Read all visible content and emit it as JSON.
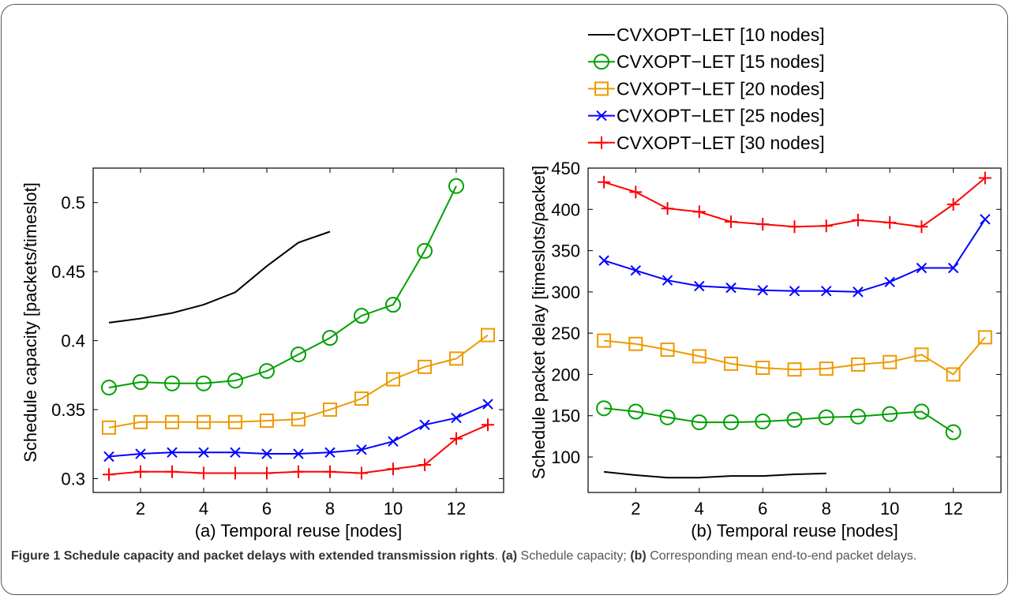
{
  "caption": {
    "label": "Figure 1",
    "title": "Schedule capacity and packet delays with extended transmission rights",
    "part_a_tag": "(a)",
    "part_a_text": "Schedule capacity;",
    "part_b_tag": "(b)",
    "part_b_text": "Corresponding mean end-to-end packet delays."
  },
  "legend": {
    "placement": "top-right (above panel b)",
    "entries": [
      {
        "label": "CVXOPT−LET [10 nodes]",
        "color": "#000000",
        "marker": "none"
      },
      {
        "label": "CVXOPT−LET [15 nodes]",
        "color": "#00a000",
        "marker": "circle"
      },
      {
        "label": "CVXOPT−LET [20 nodes]",
        "color": "#ee9a00",
        "marker": "square"
      },
      {
        "label": "CVXOPT−LET [25 nodes]",
        "color": "#0000ff",
        "marker": "x"
      },
      {
        "label": "CVXOPT−LET [30 nodes]",
        "color": "#ff0000",
        "marker": "plus"
      }
    ]
  },
  "chart_data": [
    {
      "type": "line",
      "title": "",
      "xlabel": "(a)  Temporal reuse [nodes]",
      "ylabel": "Schedule capacity [packets/timeslot]",
      "xlim": [
        0.5,
        13.5
      ],
      "ylim": [
        0.29,
        0.525
      ],
      "xticks": [
        2,
        4,
        6,
        8,
        10,
        12
      ],
      "yticks": [
        0.3,
        0.35,
        0.4,
        0.45,
        0.5
      ],
      "ytick_labels": [
        "0.3",
        "0.35",
        "0.4",
        "0.45",
        "0.5"
      ],
      "grid": false,
      "series": [
        {
          "name": "CVXOPT−LET [10 nodes]",
          "color": "#000000",
          "marker": "none",
          "x": [
            1,
            2,
            3,
            4,
            5,
            6,
            7,
            8
          ],
          "y": [
            0.413,
            0.416,
            0.42,
            0.426,
            0.435,
            0.454,
            0.471,
            0.479
          ]
        },
        {
          "name": "CVXOPT−LET [15 nodes]",
          "color": "#00a000",
          "marker": "circle",
          "x": [
            1,
            2,
            3,
            4,
            5,
            6,
            7,
            8,
            9,
            10,
            11,
            12
          ],
          "y": [
            0.366,
            0.37,
            0.369,
            0.369,
            0.371,
            0.378,
            0.39,
            0.402,
            0.418,
            0.426,
            0.465,
            0.512
          ]
        },
        {
          "name": "CVXOPT−LET [20 nodes]",
          "color": "#ee9a00",
          "marker": "square",
          "x": [
            1,
            2,
            3,
            4,
            5,
            6,
            7,
            8,
            9,
            10,
            11,
            12,
            13
          ],
          "y": [
            0.337,
            0.341,
            0.341,
            0.341,
            0.341,
            0.342,
            0.343,
            0.35,
            0.358,
            0.372,
            0.381,
            0.387,
            0.404
          ]
        },
        {
          "name": "CVXOPT−LET [25 nodes]",
          "color": "#0000ff",
          "marker": "x",
          "x": [
            1,
            2,
            3,
            4,
            5,
            6,
            7,
            8,
            9,
            10,
            11,
            12,
            13
          ],
          "y": [
            0.316,
            0.318,
            0.319,
            0.319,
            0.319,
            0.318,
            0.318,
            0.319,
            0.321,
            0.327,
            0.339,
            0.344,
            0.354
          ]
        },
        {
          "name": "CVXOPT−LET [30 nodes]",
          "color": "#ff0000",
          "marker": "plus",
          "x": [
            1,
            2,
            3,
            4,
            5,
            6,
            7,
            8,
            9,
            10,
            11,
            12,
            13
          ],
          "y": [
            0.303,
            0.305,
            0.305,
            0.304,
            0.304,
            0.304,
            0.305,
            0.305,
            0.304,
            0.307,
            0.31,
            0.329,
            0.339
          ]
        }
      ]
    },
    {
      "type": "line",
      "title": "",
      "xlabel": "(b)  Temporal reuse [nodes]",
      "ylabel": "Schedule packet delay [timeslots/packet]",
      "xlim": [
        0.5,
        13.5
      ],
      "ylim": [
        57,
        450
      ],
      "xticks": [
        2,
        4,
        6,
        8,
        10,
        12
      ],
      "yticks": [
        100,
        150,
        200,
        250,
        300,
        350,
        400,
        450
      ],
      "ytick_labels": [
        "100",
        "150",
        "200",
        "250",
        "300",
        "350",
        "400",
        "450"
      ],
      "grid": false,
      "series": [
        {
          "name": "CVXOPT−LET [10 nodes]",
          "color": "#000000",
          "marker": "none",
          "x": [
            1,
            2,
            3,
            4,
            5,
            6,
            7,
            8
          ],
          "y": [
            82,
            78,
            75,
            75,
            77,
            77,
            79,
            80
          ]
        },
        {
          "name": "CVXOPT−LET [15 nodes]",
          "color": "#00a000",
          "marker": "circle",
          "x": [
            1,
            2,
            3,
            4,
            5,
            6,
            7,
            8,
            9,
            10,
            11,
            12
          ],
          "y": [
            159,
            155,
            148,
            142,
            142,
            143,
            145,
            148,
            149,
            152,
            155,
            130
          ]
        },
        {
          "name": "CVXOPT−LET [20 nodes]",
          "color": "#ee9a00",
          "marker": "square",
          "x": [
            1,
            2,
            3,
            4,
            5,
            6,
            7,
            8,
            9,
            10,
            11,
            12,
            13
          ],
          "y": [
            241,
            237,
            230,
            222,
            213,
            208,
            206,
            207,
            212,
            215,
            224,
            200,
            245
          ]
        },
        {
          "name": "CVXOPT−LET [25 nodes]",
          "color": "#0000ff",
          "marker": "x",
          "x": [
            1,
            2,
            3,
            4,
            5,
            6,
            7,
            8,
            9,
            10,
            11,
            12,
            13
          ],
          "y": [
            338,
            326,
            314,
            307,
            305,
            302,
            301,
            301,
            300,
            312,
            329,
            329,
            388
          ]
        },
        {
          "name": "CVXOPT−LET [30 nodes]",
          "color": "#ff0000",
          "marker": "plus",
          "x": [
            1,
            2,
            3,
            4,
            5,
            6,
            7,
            8,
            9,
            10,
            11,
            12,
            13
          ],
          "y": [
            433,
            421,
            401,
            397,
            385,
            382,
            379,
            380,
            387,
            384,
            379,
            406,
            438
          ]
        }
      ]
    }
  ]
}
